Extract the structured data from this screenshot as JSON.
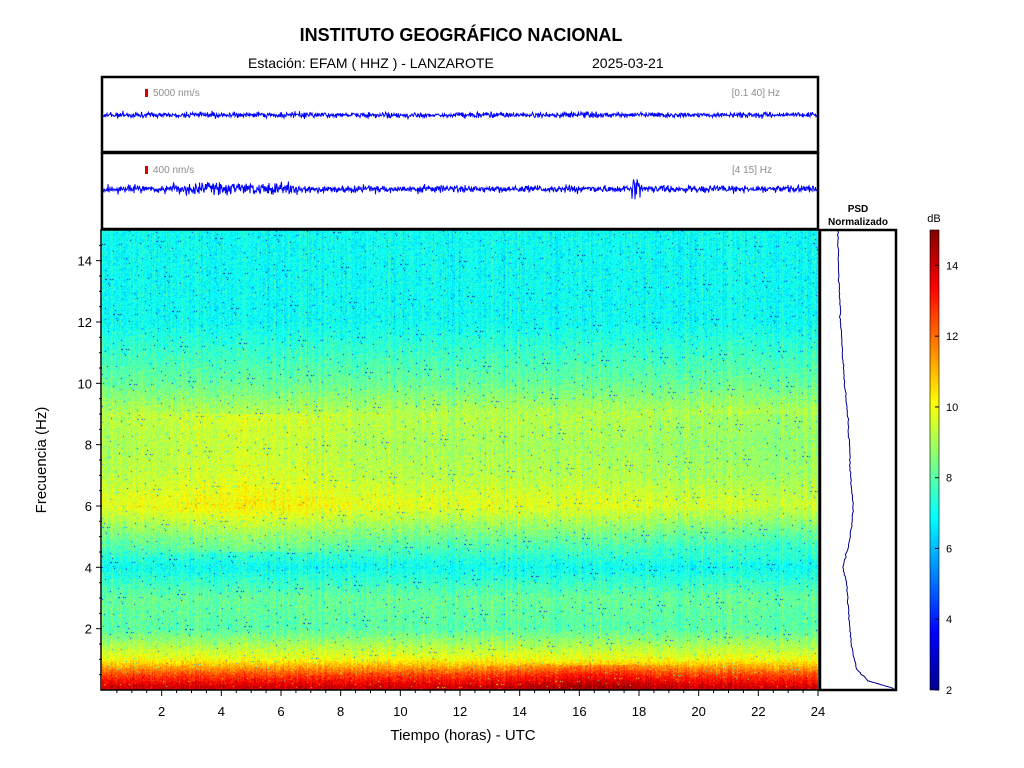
{
  "header": {
    "title": "INSTITUTO GEOGRÁFICO NACIONAL",
    "station": "Estación:  EFAM ( HHZ ) - LANZAROTE",
    "date": "2025-03-21"
  },
  "traces": [
    {
      "scale_label": "5000 nm/s",
      "band_label": "[0.1 40] Hz",
      "color": "#0000ff",
      "marker_color": "#e00000"
    },
    {
      "scale_label": "400 nm/s",
      "band_label": "[4 15] Hz",
      "color": "#0000ff",
      "marker_color": "#e00000"
    }
  ],
  "psd": {
    "title_line1": "PSD",
    "title_line2": "Normalizado",
    "color": "#00008b"
  },
  "colorbar": {
    "unit": "dB",
    "ticks": [
      "2",
      "4",
      "6",
      "8",
      "10",
      "12",
      "14"
    ],
    "range": [
      2,
      15
    ]
  },
  "chart_data": {
    "type": "heatmap",
    "title": "INSTITUTO GEOGRÁFICO NACIONAL",
    "xlabel": "Tiempo (horas) - UTC",
    "ylabel": "Frecuencia  (Hz)",
    "xlim": [
      0,
      24
    ],
    "ylim": [
      0,
      15
    ],
    "x_ticks": [
      "2",
      "4",
      "6",
      "8",
      "10",
      "12",
      "14",
      "16",
      "18",
      "20",
      "22",
      "24"
    ],
    "y_ticks": [
      "2",
      "4",
      "6",
      "8",
      "10",
      "12",
      "14"
    ],
    "colorscale": "jet",
    "approx_mean_db_profile": [
      {
        "freq_hz": 0.1,
        "db": 14.0
      },
      {
        "freq_hz": 0.5,
        "db": 12.5
      },
      {
        "freq_hz": 1.0,
        "db": 10.0
      },
      {
        "freq_hz": 2.0,
        "db": 8.0
      },
      {
        "freq_hz": 3.0,
        "db": 8.2
      },
      {
        "freq_hz": 4.0,
        "db": 7.0
      },
      {
        "freq_hz": 5.0,
        "db": 8.3
      },
      {
        "freq_hz": 6.0,
        "db": 9.8
      },
      {
        "freq_hz": 7.0,
        "db": 9.2
      },
      {
        "freq_hz": 8.0,
        "db": 9.0
      },
      {
        "freq_hz": 9.0,
        "db": 9.2
      },
      {
        "freq_hz": 10.0,
        "db": 8.2
      },
      {
        "freq_hz": 11.0,
        "db": 7.6
      },
      {
        "freq_hz": 12.0,
        "db": 7.0
      },
      {
        "freq_hz": 13.0,
        "db": 7.0
      },
      {
        "freq_hz": 14.0,
        "db": 7.0
      },
      {
        "freq_hz": 15.0,
        "db": 7.0
      }
    ],
    "psd_normalized_profile": [
      {
        "freq_hz": 0.05,
        "value": 1.0
      },
      {
        "freq_hz": 0.3,
        "value": 0.55
      },
      {
        "freq_hz": 0.7,
        "value": 0.35
      },
      {
        "freq_hz": 1.5,
        "value": 0.26
      },
      {
        "freq_hz": 2.5,
        "value": 0.22
      },
      {
        "freq_hz": 3.5,
        "value": 0.18
      },
      {
        "freq_hz": 4.0,
        "value": 0.12
      },
      {
        "freq_hz": 5.0,
        "value": 0.25
      },
      {
        "freq_hz": 6.0,
        "value": 0.3
      },
      {
        "freq_hz": 7.0,
        "value": 0.25
      },
      {
        "freq_hz": 8.0,
        "value": 0.23
      },
      {
        "freq_hz": 9.0,
        "value": 0.2
      },
      {
        "freq_hz": 10.0,
        "value": 0.15
      },
      {
        "freq_hz": 11.0,
        "value": 0.11
      },
      {
        "freq_hz": 12.0,
        "value": 0.08
      },
      {
        "freq_hz": 13.0,
        "value": 0.06
      },
      {
        "freq_hz": 14.0,
        "value": 0.04
      },
      {
        "freq_hz": 15.0,
        "value": 0.03
      }
    ]
  }
}
